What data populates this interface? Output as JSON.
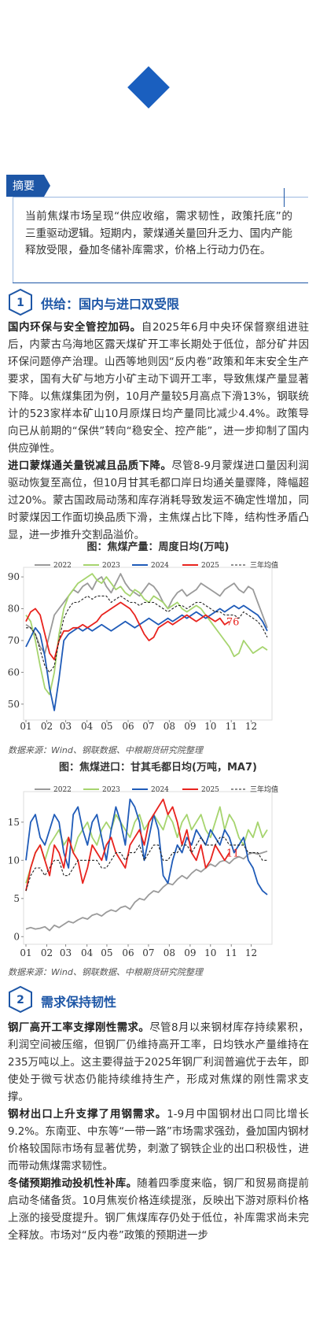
{
  "summary": {
    "tag": "摘要",
    "text": "当前焦煤市场呈现“供应收缩，需求韧性，政策托底”的三重驱动逻辑。短期内，蒙煤通关量回升乏力、国内产能释放受限，叠加冬储补库需求，价格上行动力仍在。"
  },
  "sections": [
    {
      "number": "1",
      "title": "供给：国内与进口双受限",
      "paragraphs": [
        {
          "lead": "国内环保与安全管控加码。",
          "text": "自2025年6月中央环保督察组进驻后，内蒙古乌海地区露天煤矿开工率长期处于低位，部分矿井因环保问题停产治理。山西等地则因“反内卷”政策和年末安全生产要求，国有大矿与地方小矿主动下调开工率，导致焦煤产量显著下降。以焦煤集团为例，10月产量较5月高点下滑13%，钢联统计的523家样本矿山10月原煤日均产量同比减少4.4%。政策导向已从前期的“保供”转向“稳安全、控产能”，进一步抑制了国内供应弹性。"
        },
        {
          "lead": "进口蒙煤通关量锐减且品质下降。",
          "text": "尽管8-9月蒙煤进口量因利润驱动恢复至高位，但10月甘其毛都口岸日均通关量骤降，降幅超过20%。蒙古国政局动荡和库存消耗导致发运不确定性增加，同时蒙煤因工作面切换品质下滑，主焦煤占比下降，结构性矛盾凸显，进一步推升交割品溢价。"
        }
      ]
    },
    {
      "number": "2",
      "title": "需求保持韧性",
      "paragraphs": [
        {
          "lead": "钢厂高开工率支撑刚性需求。",
          "text": "尽管8月以来钢材库存持续累积，利润空间被压缩，但钢厂仍维持高开工率，日均铁水产量维持在235万吨以上。这主要得益于2025年钢厂利润普遍优于去年，即使处于微亏状态仍能持续维持生产，形成对焦煤的刚性需求支撑。"
        },
        {
          "lead": "钢材出口上升支撑了用钢需求。",
          "text": "1-9月中国钢材出口同比增长9.2%。东南亚、中东等“一带一路”市场需求强劲，叠加国内钢材价格较国际市场有显著优势，刺激了钢铁企业的出口积极性，进而带动焦煤需求韧性。"
        },
        {
          "lead": "冬储预期推动投机性补库。",
          "text": "随着四季度来临，钢厂和贸易商提前启动冬储备货。10月焦炭价格连续提涨，反映出下游对原料价格上涨的接受度提升。钢厂焦煤库存仍处于低位，补库需求尚未完全释放。市场对“反内卷”政策的预期进一步"
        }
      ]
    }
  ],
  "chart_data": [
    {
      "type": "line",
      "title": "图：焦煤产量：周度日均(万吨)",
      "source": "数据来源：Wind、钢联数据、中粮期货研究院整理",
      "x": [
        1,
        2,
        3,
        4,
        5,
        6,
        7,
        8,
        9,
        10,
        11,
        12,
        13,
        14,
        15,
        16,
        17,
        18,
        19,
        20,
        21,
        22,
        23,
        24,
        25,
        26,
        27,
        28,
        29,
        30,
        31,
        32,
        33,
        34,
        35,
        36,
        37,
        38,
        39,
        40,
        41,
        42,
        43,
        44,
        45,
        46,
        47,
        48,
        49,
        50,
        51,
        52
      ],
      "xlim": [
        0.5,
        53
      ],
      "xticks": [
        {
          "value": 1,
          "label": "01"
        },
        {
          "value": 5.4,
          "label": "02"
        },
        {
          "value": 9.4,
          "label": "03"
        },
        {
          "value": 13.9,
          "label": "04"
        },
        {
          "value": 18.1,
          "label": "05"
        },
        {
          "value": 22.6,
          "label": "06"
        },
        {
          "value": 26.9,
          "label": "07"
        },
        {
          "value": 31.3,
          "label": "08"
        },
        {
          "value": 35.7,
          "label": "09"
        },
        {
          "value": 40,
          "label": "10"
        },
        {
          "value": 44.4,
          "label": "11"
        },
        {
          "value": 48.6,
          "label": "12"
        }
      ],
      "ylim": [
        45,
        93
      ],
      "yticks": [
        50,
        60,
        70,
        80,
        90
      ],
      "series": [
        {
          "name": "2022",
          "color": "#9a9a9a",
          "values": [
            75,
            74,
            72,
            68,
            66,
            72,
            78,
            80,
            82,
            84,
            86,
            85,
            87,
            88,
            86,
            89,
            90,
            87,
            85,
            88,
            91,
            88,
            86,
            85,
            84,
            86,
            88,
            87,
            85,
            82,
            80,
            83,
            85,
            86,
            84,
            85,
            86,
            88,
            87,
            86,
            85,
            84,
            86,
            87,
            88,
            86,
            85,
            87,
            86,
            82,
            78,
            74
          ]
        },
        {
          "name": "2023",
          "color": "#a6d46e",
          "values": [
            78,
            76,
            70,
            62,
            55,
            53,
            60,
            72,
            80,
            84,
            86,
            88,
            89,
            90,
            91,
            89,
            88,
            90,
            88,
            86,
            87,
            85,
            84,
            86,
            85,
            83,
            82,
            84,
            83,
            82,
            80,
            81,
            82,
            80,
            79,
            80,
            81,
            80,
            78,
            76,
            74,
            72,
            70,
            68,
            65,
            66,
            70,
            68,
            66,
            67,
            68,
            67
          ]
        },
        {
          "name": "2024",
          "color": "#1f5bb8",
          "values": [
            68,
            71,
            74,
            72,
            65,
            55,
            48,
            58,
            70,
            72,
            73,
            74,
            73,
            74,
            73,
            74,
            75,
            74,
            73,
            74,
            75,
            76,
            75,
            74,
            75,
            76,
            77,
            76,
            75,
            76,
            77,
            76,
            77,
            78,
            77,
            78,
            79,
            78,
            77,
            78,
            79,
            80,
            79,
            80,
            81,
            80,
            81,
            80,
            79,
            78,
            76,
            73
          ]
        },
        {
          "name": "2025",
          "color": "#e8231e",
          "label_last": true,
          "values": [
            76,
            79,
            80,
            78,
            72,
            66,
            64,
            70,
            73,
            73,
            74,
            74,
            75,
            74,
            75,
            76,
            78,
            79,
            80,
            81,
            82,
            81,
            80,
            78,
            75,
            72,
            70,
            71,
            74,
            75,
            76,
            75,
            76,
            77,
            78,
            77,
            76,
            77,
            78,
            77,
            76,
            77,
            75,
            76,
            null,
            null,
            null,
            null,
            null,
            null,
            null,
            null
          ]
        },
        {
          "name": "三年均值",
          "color": "#222222",
          "dash": true,
          "values": [
            74,
            74,
            72,
            67,
            62,
            60,
            62,
            70,
            77,
            80,
            82,
            82,
            83,
            84,
            83,
            84,
            84,
            84,
            82,
            83,
            84,
            83,
            82,
            82,
            81,
            82,
            82,
            82,
            81,
            80,
            79,
            80,
            81,
            81,
            80,
            81,
            82,
            82,
            81,
            80,
            79,
            79,
            78,
            78,
            78,
            77,
            79,
            78,
            77,
            76,
            74,
            71
          ]
        }
      ]
    },
    {
      "type": "line",
      "title": "图：焦煤进口：甘其毛都日均(万吨，MA7)",
      "source": "数据来源：Wind、钢联数据、中粮期货研究院整理",
      "x": [
        1,
        2,
        3,
        4,
        5,
        6,
        7,
        8,
        9,
        10,
        11,
        12,
        13,
        14,
        15,
        16,
        17,
        18,
        19,
        20,
        21,
        22,
        23,
        24,
        25,
        26,
        27,
        28,
        29,
        30,
        31,
        32,
        33,
        34,
        35,
        36,
        37,
        38,
        39,
        40,
        41,
        42,
        43,
        44,
        45,
        46,
        47,
        48,
        49,
        50,
        51,
        52
      ],
      "xlim": [
        0.5,
        53
      ],
      "xticks": [
        {
          "value": 1,
          "label": "01"
        },
        {
          "value": 5.4,
          "label": "02"
        },
        {
          "value": 9.4,
          "label": "03"
        },
        {
          "value": 13.9,
          "label": "04"
        },
        {
          "value": 18.1,
          "label": "05"
        },
        {
          "value": 22.6,
          "label": "06"
        },
        {
          "value": 26.9,
          "label": "07"
        },
        {
          "value": 31.3,
          "label": "08"
        },
        {
          "value": 35.7,
          "label": "09"
        },
        {
          "value": 40,
          "label": "10"
        },
        {
          "value": 44.4,
          "label": "11"
        },
        {
          "value": 48.6,
          "label": "12"
        }
      ],
      "ylim": [
        -1,
        19
      ],
      "yticks": [
        0,
        5,
        10,
        15
      ],
      "series": [
        {
          "name": "2022",
          "color": "#9a9a9a",
          "values": [
            1,
            1.2,
            1,
            1.1,
            1.3,
            0.8,
            1.5,
            1.2,
            1.6,
            2,
            1.8,
            2.2,
            2.5,
            2.3,
            2.8,
            3,
            2.7,
            3.2,
            3.5,
            3.3,
            3.8,
            4,
            3.6,
            4.5,
            5,
            4.8,
            5.5,
            6,
            5.8,
            6.5,
            7,
            6.8,
            7.5,
            8,
            7.6,
            8.3,
            8.8,
            8.5,
            9,
            9.5,
            9.2,
            9.8,
            10,
            9.6,
            10.2,
            10.5,
            10.2,
            10.8,
            11,
            10.8,
            11,
            11.2
          ]
        },
        {
          "name": "2023",
          "color": "#a6d46e",
          "values": [
            7,
            9,
            11,
            12,
            10,
            12,
            13,
            14,
            12,
            13,
            11,
            13,
            14,
            15,
            13,
            12,
            14,
            15,
            14,
            16,
            15,
            14,
            13,
            15,
            16,
            14,
            15,
            16,
            15,
            14,
            16,
            15,
            13,
            15,
            16,
            14,
            15,
            16,
            14,
            13,
            15,
            17,
            14,
            16,
            15,
            13,
            12,
            14,
            13,
            15,
            13,
            14
          ]
        },
        {
          "name": "2024",
          "color": "#1f5bb8",
          "values": [
            10,
            15,
            16,
            13,
            12,
            14,
            16,
            15,
            11,
            9,
            16,
            17,
            14,
            12,
            15,
            16,
            13,
            10,
            14,
            17,
            15,
            12,
            18,
            17,
            15,
            10,
            13,
            16,
            14,
            8,
            7,
            10,
            12,
            11,
            13,
            12,
            14,
            13,
            12,
            14,
            13,
            12,
            14,
            13,
            11,
            12,
            13,
            10,
            9,
            7,
            6,
            5.5
          ]
        },
        {
          "name": "2025",
          "color": "#e8231e",
          "label_last": true,
          "values": [
            6,
            9,
            11,
            12,
            10,
            8,
            12,
            11,
            9,
            13,
            11,
            10,
            7,
            9,
            12,
            11,
            10,
            12,
            13,
            11,
            10,
            9,
            12,
            13,
            14,
            12,
            15,
            16,
            17,
            18,
            16,
            17,
            15,
            12,
            14,
            11,
            10,
            12,
            9,
            10,
            12,
            11,
            10,
            11,
            null,
            null,
            null,
            null,
            null,
            null,
            null,
            null
          ]
        },
        {
          "name": "三年均值",
          "color": "#222222",
          "dash": true,
          "values": [
            6,
            8,
            9,
            9,
            8,
            9,
            10,
            10,
            8,
            8,
            9,
            10,
            10,
            10,
            10,
            10,
            9,
            9,
            10,
            11,
            11,
            10,
            11,
            11,
            12,
            10,
            11,
            12,
            12,
            10,
            10,
            11,
            11,
            12,
            12,
            11,
            12,
            13,
            12,
            12,
            12,
            13,
            13,
            12,
            12,
            12,
            12,
            11,
            11,
            11,
            10,
            10
          ]
        }
      ]
    }
  ]
}
